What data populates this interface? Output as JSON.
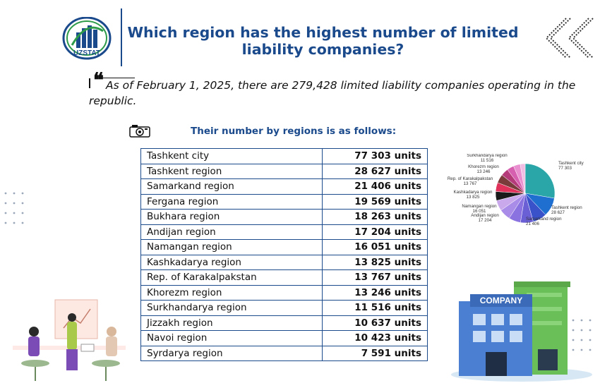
{
  "logo": {
    "text": "UZSTAT"
  },
  "title": "Which region has the highest number of limited liability companies?",
  "quote": "As of February 1, 2025, there are 279,428 limited liability companies operating in the republic.",
  "subtitle": "Their number by regions is as follows:",
  "colors": {
    "brand": "#1b4a8c",
    "text": "#111111"
  },
  "icons": [
    "uzstat-logo-icon",
    "chevron-double-left-icon",
    "quote-icon",
    "camera-icon",
    "dots-pattern-icon",
    "meeting-people-illustration",
    "company-building-illustration"
  ],
  "table": {
    "rows": [
      {
        "region": "Tashkent city",
        "value": "77 303 units"
      },
      {
        "region": "Tashkent region",
        "value": "28 627 units"
      },
      {
        "region": "Samarkand region",
        "value": "21 406 units"
      },
      {
        "region": "Fergana region",
        "value": "19 569 units"
      },
      {
        "region": "Bukhara region",
        "value": "18 263 units"
      },
      {
        "region": "Andijan region",
        "value": "17 204 units"
      },
      {
        "region": "Namangan region",
        "value": "16 051 units"
      },
      {
        "region": "Kashkadarya region",
        "value": "13 825 units"
      },
      {
        "region": "Rep. of Karakalpakstan",
        "value": "13 767 units"
      },
      {
        "region": "Khorezm region",
        "value": "13 246 units"
      },
      {
        "region": "Surkhandarya region",
        "value": "11 516 units"
      },
      {
        "region": "Jizzakh region",
        "value": "10 637 units"
      },
      {
        "region": "Navoi region",
        "value": "10 423 units"
      },
      {
        "region": "Syrdarya region",
        "value": "7 591 units"
      }
    ]
  },
  "building": {
    "sign": "COMPANY"
  },
  "chart_data": {
    "type": "pie",
    "slices": [
      {
        "label": "Tashkent city",
        "value_label": "77 303",
        "value": 77303,
        "color": "#2aa6a8"
      },
      {
        "label": "Tashkent region",
        "value_label": "28 627",
        "value": 28627,
        "color": "#1f6fd1"
      },
      {
        "label": "Samarkand region",
        "value_label": "21 406",
        "value": 21406,
        "color": "#3a52c9"
      },
      {
        "label": "Fergana region",
        "value": 19569,
        "color": "#6b5fd6"
      },
      {
        "label": "Bukhara region",
        "value": 18263,
        "color": "#8a72e0"
      },
      {
        "label": "Andijan region",
        "value_label": "17 204",
        "value": 17204,
        "color": "#a98be8"
      },
      {
        "label": "Namangan region",
        "value_label": "16 051",
        "value": 16051,
        "color": "#c9a9ec"
      },
      {
        "label": "Kashkadarya region",
        "value_label": "13 825",
        "value": 13825,
        "color": "#1a1a1a"
      },
      {
        "label": "Rep. of Karakalpakstan",
        "value_label": "13 767",
        "value": 13767,
        "color": "#e0325a"
      },
      {
        "label": "Khorezm region",
        "value_label": "13 246",
        "value": 13246,
        "color": "#7a3b3b"
      },
      {
        "label": "Surkhandarya region",
        "value_label": "11 516",
        "value": 11516,
        "color": "#b53a7a"
      },
      {
        "label": "Jizzakh region",
        "value": 10637,
        "color": "#d75fb0"
      },
      {
        "label": "Navoi region",
        "value": 10423,
        "color": "#e98fcf"
      },
      {
        "label": "Syrdarya region",
        "value": 7591,
        "color": "#f2bde3"
      }
    ]
  }
}
